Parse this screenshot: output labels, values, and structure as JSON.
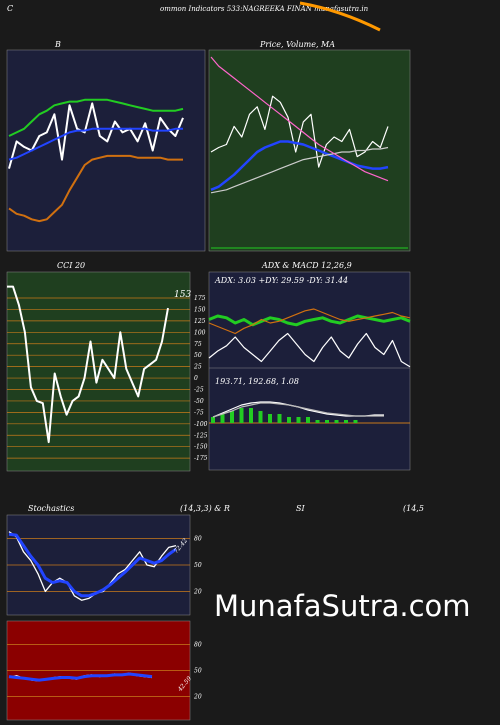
{
  "page": {
    "header_left": "C",
    "header_text": "ommon  Indicators 533:NAGREEKA FINAN  munafasutra.in",
    "watermark": "MunafaSutra.com"
  },
  "colors": {
    "background": "#1a1a1a",
    "panel_navy": "#1c1f3a",
    "panel_green": "#1f3f1f",
    "panel_red": "#8b0000",
    "grid_orange": "#c87a1a",
    "blue_line": "#2244ff",
    "green_line": "#22cc22",
    "white_line": "#ffffff",
    "orange_line": "#d07010",
    "pink_line": "#ff66cc"
  },
  "chart_data": [
    {
      "id": "bollinger",
      "type": "line",
      "title": "B",
      "series": [
        {
          "color": "#ffffff",
          "values": [
            40,
            55,
            52,
            50,
            58,
            60,
            70,
            45,
            75,
            62,
            60,
            76,
            58,
            55,
            66,
            60,
            62,
            55,
            65,
            50,
            68,
            62,
            58,
            68
          ]
        },
        {
          "color": "#22cc22",
          "values": [
            58,
            60,
            62,
            66,
            70,
            72,
            75,
            76,
            77,
            77,
            78,
            78,
            78,
            78,
            77,
            76,
            75,
            74,
            73,
            72,
            72,
            72,
            72,
            73
          ]
        },
        {
          "color": "#2244ff",
          "values": [
            45,
            46,
            48,
            50,
            52,
            54,
            56,
            58,
            60,
            61,
            61,
            62,
            62,
            62,
            62,
            62,
            62,
            62,
            62,
            61,
            61,
            61,
            62,
            62
          ]
        },
        {
          "color": "#d07010",
          "values": [
            18,
            15,
            14,
            12,
            11,
            12,
            16,
            20,
            28,
            35,
            42,
            45,
            46,
            47,
            47,
            47,
            47,
            46,
            46,
            46,
            46,
            45,
            45,
            45
          ]
        }
      ],
      "ylim": [
        0,
        100
      ]
    },
    {
      "id": "price_ma",
      "type": "line",
      "title": "Price, Volume, MA",
      "series": [
        {
          "color": "#ffffff",
          "values": [
            55,
            58,
            60,
            72,
            65,
            80,
            85,
            70,
            92,
            88,
            78,
            55,
            75,
            80,
            45,
            60,
            65,
            62,
            70,
            52,
            55,
            62,
            58,
            72
          ]
        },
        {
          "color": "#2244ff",
          "values": [
            30,
            32,
            36,
            40,
            45,
            50,
            55,
            58,
            60,
            62,
            62,
            61,
            60,
            58,
            56,
            54,
            52,
            50,
            48,
            46,
            45,
            44,
            44,
            45
          ]
        },
        {
          "color": "#cccccc",
          "values": [
            28,
            29,
            30,
            32,
            34,
            36,
            38,
            40,
            42,
            44,
            46,
            48,
            50,
            51,
            52,
            53,
            54,
            55,
            55,
            56,
            56,
            57,
            57,
            58
          ]
        },
        {
          "color": "#ff66cc",
          "values": [
            118,
            112,
            108,
            104,
            100,
            96,
            92,
            88,
            84,
            80,
            76,
            72,
            68,
            64,
            60,
            57,
            54,
            51,
            48,
            45,
            42,
            40,
            38,
            36
          ]
        }
      ],
      "ylim": [
        0,
        120
      ]
    },
    {
      "id": "cci",
      "type": "line",
      "title": "CCI 20",
      "last_value_label": "153",
      "yticks": [
        175,
        150,
        125,
        100,
        75,
        50,
        25,
        0,
        -25,
        -50,
        -75,
        -100,
        -125,
        -150,
        -175
      ],
      "series": [
        {
          "color": "#ffffff",
          "values": [
            200,
            200,
            160,
            100,
            -20,
            -50,
            -55,
            -140,
            10,
            -40,
            -80,
            -50,
            -40,
            0,
            80,
            -10,
            40,
            20,
            0,
            100,
            20,
            -10,
            -40,
            20,
            30,
            40,
            80,
            153
          ]
        }
      ],
      "ylim": [
        -190,
        210
      ]
    },
    {
      "id": "adx_macd",
      "type": "line",
      "title": "ADX  & MACD 12,26,9",
      "adx_label": "ADX: 3.03 +DY: 29.59 -DY: 31.44",
      "macd_label": "193.71,  192.68,  1.08",
      "adx_series": [
        {
          "name": "+DY",
          "color": "#22cc22",
          "values": [
            30,
            32,
            31,
            28,
            30,
            27,
            29,
            31,
            30,
            28,
            27,
            29,
            30,
            31,
            29,
            28,
            30,
            32,
            31,
            30,
            29,
            30,
            31,
            29
          ]
        },
        {
          "name": "-DY",
          "color": "#d07010",
          "values": [
            28,
            26,
            24,
            22,
            25,
            27,
            30,
            28,
            29,
            31,
            33,
            35,
            36,
            34,
            32,
            30,
            29,
            30,
            31,
            32,
            33,
            34,
            32,
            31
          ]
        },
        {
          "name": "ADX",
          "color": "#ffffff",
          "values": [
            8,
            12,
            15,
            20,
            14,
            10,
            6,
            12,
            18,
            22,
            16,
            10,
            6,
            14,
            20,
            12,
            8,
            16,
            22,
            14,
            10,
            18,
            6,
            3
          ]
        }
      ],
      "macd_series": [
        {
          "color": "#ffffff",
          "values": [
            0,
            4,
            8,
            12,
            14,
            15,
            15,
            14,
            12,
            10,
            7,
            5,
            3,
            2,
            1,
            1,
            1,
            2,
            2
          ]
        },
        {
          "color": "#bbbbbb",
          "values": [
            0,
            3,
            6,
            10,
            12,
            14,
            14,
            13,
            12,
            10,
            8,
            6,
            4,
            3,
            2,
            1,
            1,
            1,
            1
          ]
        }
      ],
      "macd_hist": [
        2,
        3,
        4,
        5,
        5,
        4,
        3,
        3,
        2,
        2,
        2,
        1,
        1,
        1,
        1,
        1,
        0,
        0,
        0
      ]
    },
    {
      "id": "stochastics",
      "type": "line",
      "title_left": "Stochastics",
      "title_mid": "(14,3,3) & R",
      "last_value_label": "72.42",
      "yticks": [
        80,
        50,
        20
      ],
      "series": [
        {
          "color": "#ffffff",
          "values": [
            88,
            82,
            65,
            55,
            40,
            20,
            30,
            35,
            30,
            15,
            10,
            12,
            18,
            20,
            30,
            40,
            45,
            55,
            65,
            50,
            48,
            60,
            70,
            72
          ]
        },
        {
          "color": "#2244ff",
          "values": [
            85,
            84,
            72,
            60,
            50,
            35,
            30,
            32,
            30,
            20,
            15,
            15,
            18,
            22,
            28,
            35,
            42,
            50,
            58,
            55,
            52,
            55,
            62,
            68
          ]
        }
      ],
      "ylim": [
        0,
        100
      ]
    },
    {
      "id": "rsi",
      "type": "line",
      "title": "SI",
      "params": "(14,5",
      "last_value_label": "42.59",
      "yticks": [
        80,
        50,
        20
      ],
      "series": [
        {
          "color": "#ffffff",
          "values": [
            42,
            44,
            41,
            39,
            38,
            40,
            42,
            43,
            41,
            40,
            44,
            45,
            43,
            44,
            46,
            45,
            47,
            44,
            43,
            42
          ]
        },
        {
          "color": "#2244ff",
          "values": [
            43,
            42,
            41,
            40,
            39,
            40,
            41,
            42,
            42,
            41,
            43,
            44,
            44,
            44,
            45,
            45,
            46,
            45,
            44,
            43
          ]
        }
      ],
      "ylim": [
        0,
        100
      ]
    }
  ]
}
